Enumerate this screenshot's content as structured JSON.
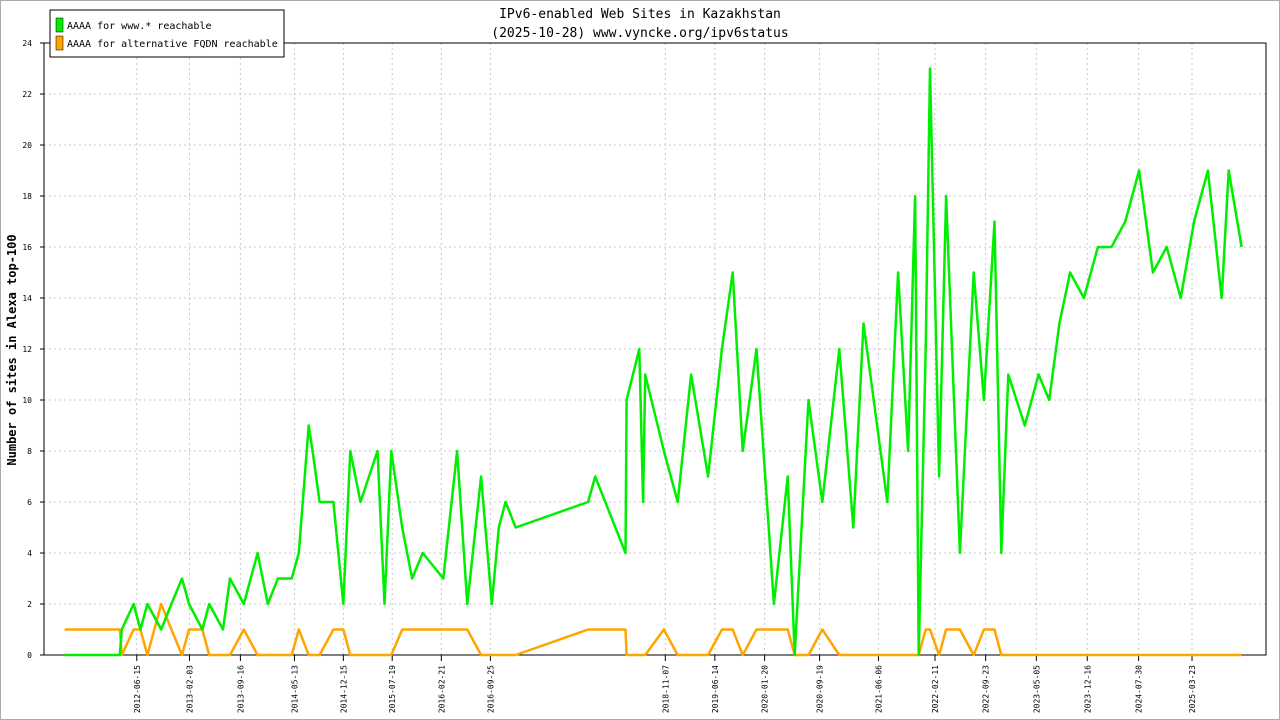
{
  "chart_data": {
    "type": "line",
    "title": "IPv6-enabled Web Sites in Kazakhstan",
    "subtitle": "(2025-10-28) www.vyncke.org/ipv6status",
    "y_label": "Number of sites in Alexa top-100",
    "legend": "top-left",
    "grid": true,
    "xlim": [
      "2011-05-02",
      "2026-02-13"
    ],
    "ylim": [
      0,
      24
    ],
    "yticks": [
      0,
      2,
      4,
      6,
      8,
      10,
      12,
      14,
      16,
      18,
      20,
      22,
      24
    ],
    "xticks": [
      "2012-06-15",
      "2013-02-03",
      "2013-09-16",
      "2014-05-13",
      "2014-12-15",
      "2015-07-19",
      "2016-02-21",
      "2016-09-25",
      "2018-11-07",
      "2019-06-14",
      "2020-01-20",
      "2020-09-19",
      "2021-06-06",
      "2022-02-11",
      "2022-09-23",
      "2023-05-05",
      "2023-12-16",
      "2024-07-30",
      "2025-03-23"
    ],
    "x": [
      "2011-08-01",
      "2012-04-01",
      "2012-04-10",
      "2012-06-01",
      "2012-07-01",
      "2012-08-01",
      "2012-10-01",
      "2012-11-15",
      "2013-01-01",
      "2013-02-01",
      "2013-04-01",
      "2013-05-01",
      "2013-07-01",
      "2013-08-01",
      "2013-10-01",
      "2013-12-01",
      "2014-01-15",
      "2014-03-01",
      "2014-05-01",
      "2014-06-01",
      "2014-07-15",
      "2014-08-01",
      "2014-09-01",
      "2014-11-01",
      "2014-12-15",
      "2015-01-15",
      "2015-03-01",
      "2015-05-15",
      "2015-06-15",
      "2015-07-15",
      "2015-09-01",
      "2015-10-15",
      "2015-12-01",
      "2016-03-01",
      "2016-05-01",
      "2016-06-15",
      "2016-08-15",
      "2016-10-01",
      "2016-11-01",
      "2016-12-01",
      "2017-01-15",
      "2017-12-01",
      "2018-01-01",
      "2018-05-15",
      "2018-05-20",
      "2018-07-15",
      "2018-08-01",
      "2018-08-10",
      "2018-11-01",
      "2019-01-01",
      "2019-03-01",
      "2019-05-15",
      "2019-07-15",
      "2019-09-01",
      "2019-10-15",
      "2019-12-15",
      "2020-03-01",
      "2020-05-01",
      "2020-06-01",
      "2020-08-01",
      "2020-10-01",
      "2020-12-15",
      "2021-02-15",
      "2021-04-01",
      "2021-07-15",
      "2021-09-01",
      "2021-10-15",
      "2021-11-15",
      "2021-12-01",
      "2022-01-01",
      "2022-01-20",
      "2022-03-01",
      "2022-04-01",
      "2022-06-01",
      "2022-08-01",
      "2022-09-15",
      "2022-11-01",
      "2022-12-01",
      "2023-01-01",
      "2023-03-15",
      "2023-05-15",
      "2023-07-01",
      "2023-08-15",
      "2023-10-01",
      "2023-12-01",
      "2024-02-01",
      "2024-04-01",
      "2024-06-01",
      "2024-08-01",
      "2024-10-01",
      "2024-12-01",
      "2025-02-01",
      "2025-04-01",
      "2025-06-01",
      "2025-08-01",
      "2025-09-01",
      "2025-10-28"
    ],
    "series": [
      {
        "name": "AAAA for www.* reachable",
        "color": "#00ee00",
        "values": [
          0,
          0,
          1,
          2,
          1,
          2,
          1,
          2,
          3,
          2,
          1,
          2,
          1,
          3,
          2,
          4,
          2,
          3,
          3,
          4,
          9,
          8,
          6,
          6,
          2,
          8,
          6,
          8,
          2,
          8,
          5,
          3,
          4,
          3,
          8,
          2,
          7,
          2,
          5,
          6,
          5,
          6,
          7,
          4,
          10,
          12,
          6,
          11,
          8,
          6,
          11,
          7,
          12,
          15,
          8,
          12,
          2,
          7,
          0,
          10,
          6,
          12,
          5,
          13,
          6,
          15,
          8,
          18,
          0,
          12,
          23,
          7,
          18,
          4,
          15,
          10,
          17,
          4,
          11,
          9,
          11,
          10,
          13,
          15,
          14,
          16,
          16,
          17,
          19,
          15,
          16,
          14,
          17,
          19,
          14,
          19,
          16
        ]
      },
      {
        "name": "AAAA for alternative FQDN reachable",
        "color": "#ffa500",
        "values": [
          1,
          1,
          0,
          1,
          1,
          0,
          2,
          1,
          0,
          1,
          1,
          0,
          0,
          0,
          1,
          0,
          0,
          0,
          0,
          1,
          0,
          0,
          0,
          1,
          1,
          0,
          0,
          0,
          0,
          0,
          1,
          1,
          1,
          1,
          1,
          1,
          0,
          0,
          0,
          0,
          0,
          1,
          1,
          1,
          0,
          0,
          0,
          0,
          1,
          0,
          0,
          0,
          1,
          1,
          0,
          1,
          1,
          1,
          0,
          0,
          1,
          0,
          0,
          0,
          0,
          0,
          0,
          0,
          0,
          1,
          1,
          0,
          1,
          1,
          0,
          1,
          1,
          0,
          0,
          0,
          0,
          0,
          0,
          0,
          0,
          0,
          0,
          0,
          0,
          0,
          0,
          0,
          0,
          0,
          0,
          0,
          0
        ]
      }
    ]
  }
}
